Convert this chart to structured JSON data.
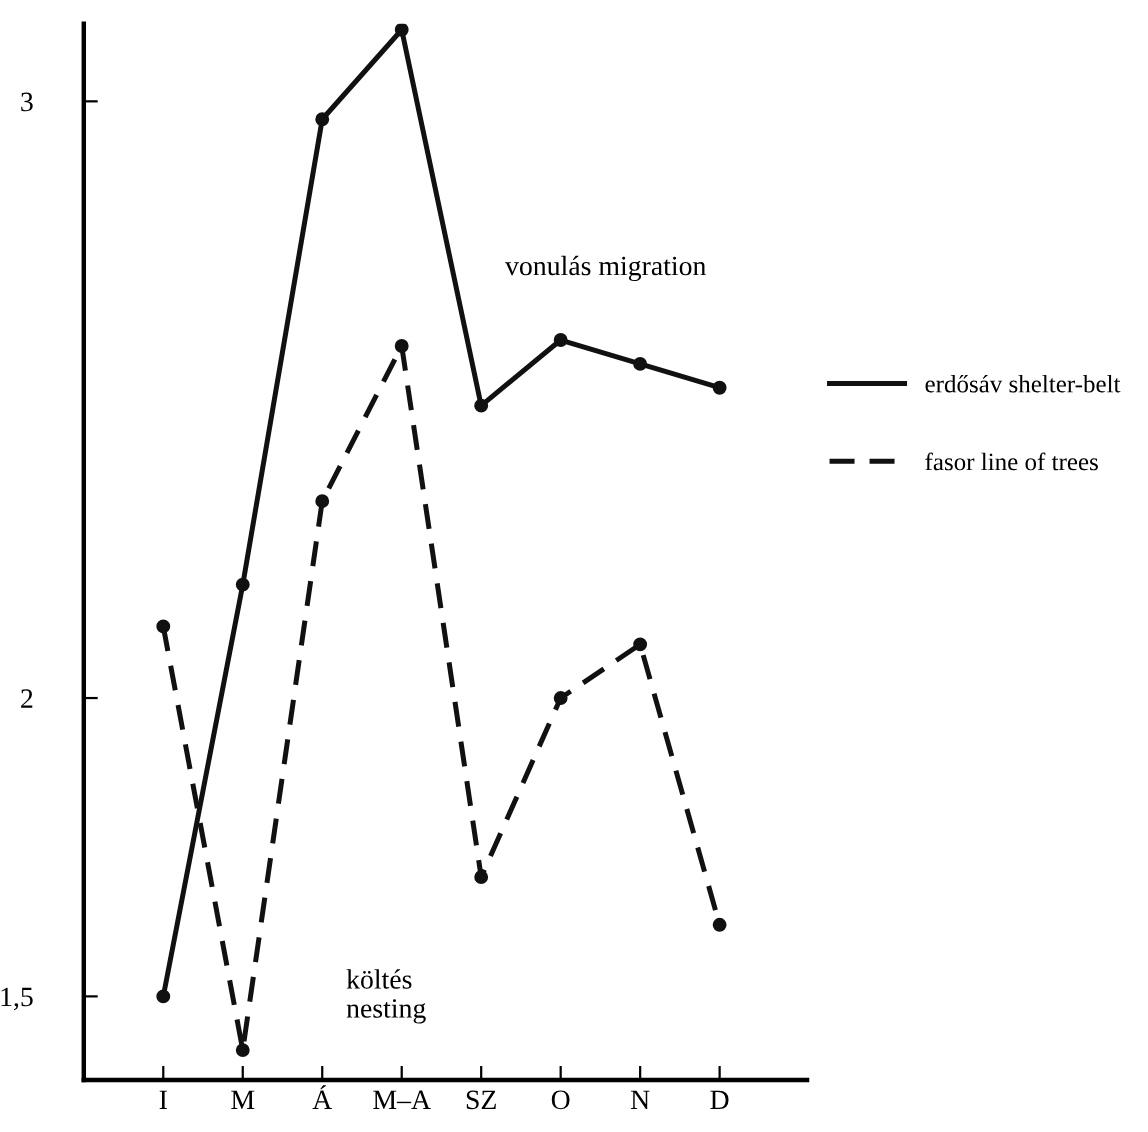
{
  "chart_data": {
    "type": "line",
    "categories": [
      "I",
      "M",
      "Á",
      "M–A",
      "SZ",
      "O",
      "N",
      "D"
    ],
    "series": [
      {
        "name": "erdősáv shelter-belt",
        "color": "#111111",
        "line_style": "solid",
        "values": [
          1.5,
          2.19,
          2.97,
          3.12,
          2.49,
          2.6,
          2.56,
          2.52
        ]
      },
      {
        "name": "fasor line of trees",
        "color": "#111111",
        "line_style": "dashed",
        "values": [
          2.12,
          1.41,
          2.33,
          2.59,
          1.7,
          2.0,
          2.09,
          1.62
        ]
      }
    ],
    "ylim": [
      1.36,
      3.13
    ],
    "yticks": [
      {
        "value": 1.5,
        "label": "1,5"
      },
      2,
      3
    ],
    "annotations": [
      "vonulás migration",
      "költés\nnesting"
    ],
    "marker": "circle",
    "legend": "right",
    "grid": false
  }
}
